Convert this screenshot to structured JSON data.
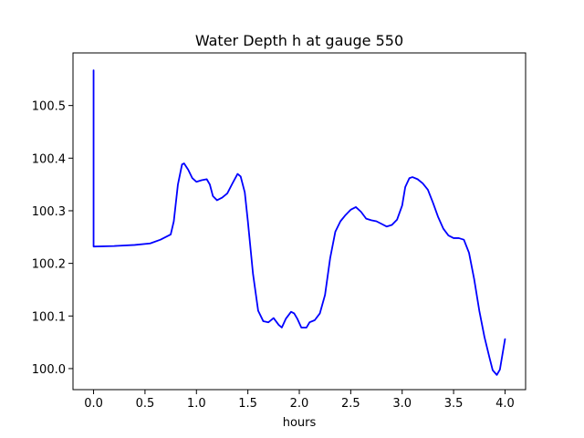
{
  "chart_data": {
    "type": "line",
    "title": "Water Depth h at gauge 550",
    "xlabel": "hours",
    "ylabel": "",
    "xlim": [
      -0.2,
      4.2
    ],
    "ylim": [
      99.96,
      100.6
    ],
    "xticks": [
      0.0,
      0.5,
      1.0,
      1.5,
      2.0,
      2.5,
      3.0,
      3.5,
      4.0
    ],
    "xtick_labels": [
      "0.0",
      "0.5",
      "1.0",
      "1.5",
      "2.0",
      "2.5",
      "3.0",
      "3.5",
      "4.0"
    ],
    "yticks": [
      100.0,
      100.1,
      100.2,
      100.3,
      100.4,
      100.5
    ],
    "ytick_labels": [
      "100.0",
      "100.1",
      "100.2",
      "100.3",
      "100.4",
      "100.5"
    ],
    "grid": false,
    "series": [
      {
        "color": "#0000ff",
        "x": [
          0.0,
          0.0,
          0.0,
          0.2,
          0.4,
          0.55,
          0.65,
          0.75,
          0.78,
          0.82,
          0.86,
          0.88,
          0.92,
          0.96,
          1.0,
          1.05,
          1.1,
          1.13,
          1.16,
          1.2,
          1.25,
          1.3,
          1.35,
          1.4,
          1.43,
          1.47,
          1.5,
          1.55,
          1.6,
          1.65,
          1.7,
          1.75,
          1.8,
          1.83,
          1.87,
          1.92,
          1.95,
          1.98,
          2.02,
          2.07,
          2.1,
          2.15,
          2.2,
          2.25,
          2.3,
          2.35,
          2.4,
          2.45,
          2.5,
          2.55,
          2.6,
          2.65,
          2.7,
          2.75,
          2.8,
          2.85,
          2.9,
          2.95,
          3.0,
          3.03,
          3.07,
          3.1,
          3.15,
          3.2,
          3.25,
          3.3,
          3.35,
          3.4,
          3.45,
          3.5,
          3.55,
          3.6,
          3.65,
          3.7,
          3.75,
          3.8,
          3.85,
          3.88,
          3.92,
          3.95,
          4.0
        ],
        "y": [
          100.567,
          100.232,
          100.232,
          100.233,
          100.235,
          100.238,
          100.245,
          100.255,
          100.28,
          100.35,
          100.388,
          100.39,
          100.378,
          100.362,
          100.355,
          100.358,
          100.36,
          100.35,
          100.328,
          100.32,
          100.325,
          100.333,
          100.352,
          100.37,
          100.365,
          100.335,
          100.28,
          100.18,
          100.11,
          100.09,
          100.088,
          100.096,
          100.083,
          100.078,
          100.095,
          100.108,
          100.105,
          100.095,
          100.078,
          100.078,
          100.088,
          100.092,
          100.105,
          100.14,
          100.21,
          100.26,
          100.28,
          100.292,
          100.302,
          100.307,
          100.298,
          100.285,
          100.282,
          100.28,
          100.275,
          100.27,
          100.273,
          100.283,
          100.31,
          100.345,
          100.362,
          100.364,
          100.36,
          100.352,
          100.34,
          100.315,
          100.288,
          100.266,
          100.253,
          100.248,
          100.248,
          100.245,
          100.22,
          100.17,
          100.11,
          100.06,
          100.02,
          99.997,
          99.988,
          99.998,
          100.056
        ]
      }
    ]
  }
}
